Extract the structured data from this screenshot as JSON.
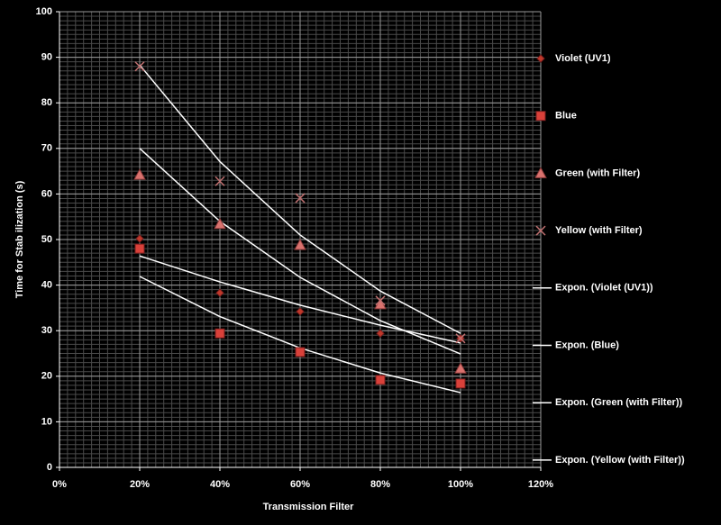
{
  "chart_data": {
    "type": "scatter",
    "x_label": "Transmission Filter",
    "y_label": "Time for Stab ilization (s)",
    "x": [
      20,
      40,
      60,
      80,
      100
    ],
    "series": [
      {
        "name": "Violet  (UV1)",
        "color": "#c0392b",
        "marker": "diamond",
        "values": [
          50.2,
          38.3,
          34.2,
          29.4,
          28.3
        ]
      },
      {
        "name": "Blue",
        "color": "#d9413a",
        "marker": "square",
        "values": [
          48,
          29.4,
          25.3,
          19.2,
          18.4
        ]
      },
      {
        "name": "Green (with Filter)",
        "color": "#d9726e",
        "marker": "triangle",
        "values": [
          64.2,
          53.4,
          48.8,
          35.8,
          21.7
        ]
      },
      {
        "name": "Yellow (with Filter)",
        "color": "#c07070",
        "marker": "x",
        "values": [
          88,
          62.8,
          59.1,
          36.6,
          28.3
        ]
      }
    ],
    "trendlines": [
      {
        "name": "Expon. (Violet  (UV1))",
        "color": "#ffffff",
        "values": [
          46.4,
          40.7,
          35.6,
          31.2,
          27.3
        ]
      },
      {
        "name": "Expon. (Blue)",
        "color": "#ffffff",
        "values": [
          41.9,
          33.1,
          26.2,
          20.7,
          16.4
        ]
      },
      {
        "name": "Expon. (Green (with Filter))",
        "color": "#ffffff",
        "values": [
          70,
          54.0,
          41.7,
          32.2,
          24.9
        ]
      },
      {
        "name": "Expon. (Yellow (with Filter))",
        "color": "#ffffff",
        "values": [
          88.3,
          67.1,
          51.0,
          38.7,
          29.4
        ]
      }
    ],
    "xlim": [
      0,
      120
    ],
    "xticks": [
      {
        "value": 0,
        "label": "0%"
      },
      {
        "value": 20,
        "label": "20%"
      },
      {
        "value": 40,
        "label": "40%"
      },
      {
        "value": 60,
        "label": "60%"
      },
      {
        "value": 80,
        "label": "80%"
      },
      {
        "value": 100,
        "label": "100%"
      },
      {
        "value": 120,
        "label": "120%"
      }
    ],
    "ylim": [
      0,
      100
    ],
    "yticks": [
      0,
      10,
      20,
      30,
      40,
      50,
      60,
      70,
      80,
      90,
      100
    ],
    "grid": true,
    "minor_grid": {
      "x": 2,
      "y": 1
    },
    "legend": "right"
  }
}
